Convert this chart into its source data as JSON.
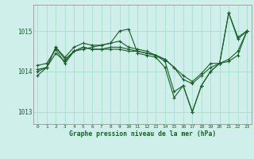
{
  "background_color": "#cff0ea",
  "grid_color": "#aaddcc",
  "line_color": "#1a5c2a",
  "title": "Graphe pression niveau de la mer (hPa)",
  "xlim": [
    -0.5,
    23.5
  ],
  "ylim": [
    1012.7,
    1015.65
  ],
  "yticks": [
    1013,
    1014,
    1015
  ],
  "xticks": [
    0,
    1,
    2,
    3,
    4,
    5,
    6,
    7,
    8,
    9,
    10,
    11,
    12,
    13,
    14,
    15,
    16,
    17,
    18,
    19,
    20,
    21,
    22,
    23
  ],
  "series": [
    [
      1013.9,
      1014.1,
      1014.6,
      1014.3,
      1014.5,
      1014.55,
      1014.6,
      1014.65,
      1014.7,
      1015.0,
      1015.05,
      1014.45,
      1014.4,
      1014.35,
      1014.1,
      1013.35,
      1013.65,
      1013.0,
      1013.65,
      1014.0,
      1014.2,
      1015.45,
      1014.8,
      1015.0
    ],
    [
      1014.15,
      1014.2,
      1014.55,
      1014.2,
      1014.5,
      1014.6,
      1014.55,
      1014.55,
      1014.55,
      1014.55,
      1014.5,
      1014.5,
      1014.45,
      1014.4,
      1014.3,
      1014.1,
      1013.9,
      1013.75,
      1013.95,
      1014.2,
      1014.2,
      1014.3,
      1014.5,
      1015.0
    ],
    [
      1014.05,
      1014.1,
      1014.45,
      1014.25,
      1014.5,
      1014.6,
      1014.55,
      1014.55,
      1014.6,
      1014.6,
      1014.55,
      1014.5,
      1014.45,
      1014.4,
      1014.3,
      1014.1,
      1013.8,
      1013.7,
      1013.9,
      1014.1,
      1014.2,
      1014.25,
      1014.4,
      1015.0
    ],
    [
      1014.0,
      1014.1,
      1014.6,
      1014.35,
      1014.6,
      1014.7,
      1014.65,
      1014.65,
      1014.7,
      1014.75,
      1014.6,
      1014.55,
      1014.5,
      1014.4,
      1014.25,
      1013.5,
      1013.65,
      1013.0,
      1013.65,
      1014.0,
      1014.2,
      1015.45,
      1014.85,
      1015.0
    ]
  ]
}
